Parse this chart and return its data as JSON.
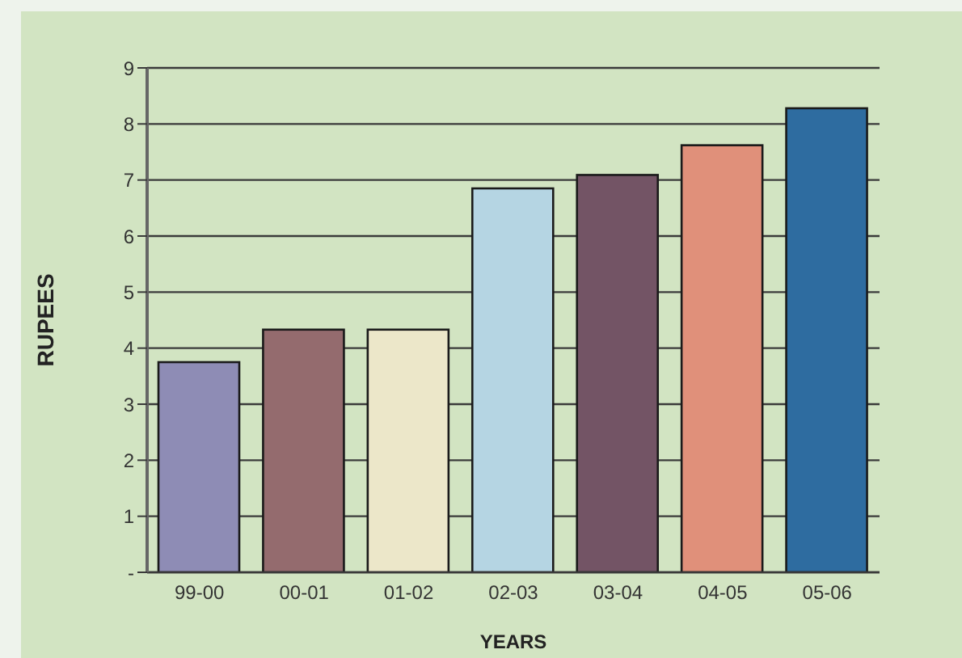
{
  "chart_data": {
    "type": "bar",
    "xlabel": "YEARS",
    "ylabel": "RUPEES",
    "categories": [
      "99-00",
      "00-01",
      "01-02",
      "02-03",
      "03-04",
      "04-05",
      "05-06"
    ],
    "values": [
      3.75,
      4.33,
      4.33,
      6.85,
      7.09,
      7.62,
      8.28
    ],
    "colors": [
      "#8e8cb5",
      "#946b6e",
      "#ece7c9",
      "#b5d5e3",
      "#735465",
      "#e0907a",
      "#2e6ca0"
    ],
    "ylim": [
      0,
      9
    ],
    "yticks": [
      {
        "value": 0,
        "label": "-"
      },
      1,
      2,
      3,
      4,
      5,
      6,
      7,
      8,
      9
    ],
    "grid": "y"
  }
}
